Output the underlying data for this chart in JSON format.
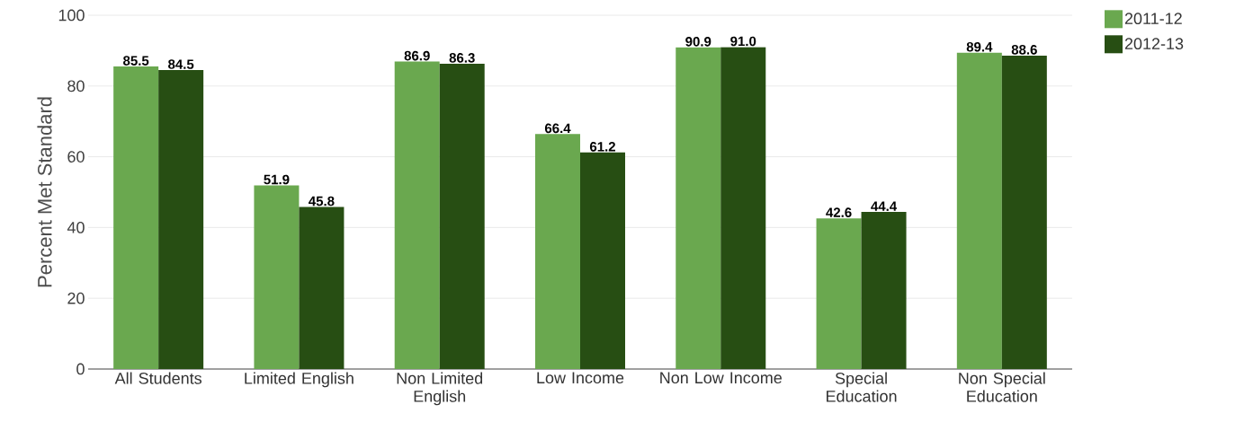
{
  "chart_data": {
    "type": "bar",
    "ylabel": "Percent Met Standard",
    "categories": [
      "All Students",
      "Limited English",
      "Non Limited English",
      "Low Income",
      "Non Low Income",
      "Special Education",
      "Non Special Education"
    ],
    "series": [
      {
        "name": "2011-12",
        "color": "#6aa84f",
        "values": [
          85.5,
          51.9,
          86.9,
          66.4,
          90.9,
          42.6,
          89.4
        ],
        "value_labels": [
          "85.5",
          "51.9",
          "86.9",
          "66.4",
          "90.9",
          "42.6",
          "89.4"
        ]
      },
      {
        "name": "2012-13",
        "color": "#274e13",
        "values": [
          84.5,
          45.8,
          86.3,
          61.2,
          91.0,
          44.4,
          88.6
        ],
        "value_labels": [
          "84.5",
          "45.8",
          "86.3",
          "61.2",
          "91.0",
          "44.4",
          "88.6"
        ]
      }
    ],
    "ylim": [
      0,
      100
    ],
    "yticks": [
      0,
      20,
      40,
      60,
      80,
      100
    ],
    "grid": "y",
    "legend": "top right"
  }
}
